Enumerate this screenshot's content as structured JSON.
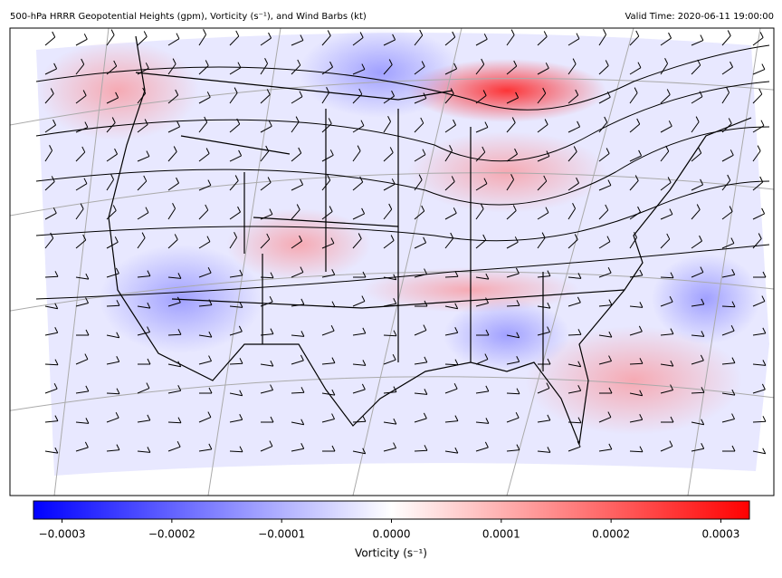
{
  "header": {
    "title": "500-hPa HRRR Geopotential Heights (gpm), Vorticity (s⁻¹), and Wind Barbs (kt)",
    "valid_time": "Valid Time: 2020-06-11 19:00:00"
  },
  "colorbar": {
    "label": "Vorticity (s⁻¹)",
    "lim": [
      -0.000326,
      0.000326
    ],
    "ticks": [
      {
        "value": -0.0003,
        "label": "−0.0003"
      },
      {
        "value": -0.0002,
        "label": "−0.0002"
      },
      {
        "value": -0.0001,
        "label": "−0.0001"
      },
      {
        "value": 0,
        "label": "0.0000"
      },
      {
        "value": 0.0001,
        "label": "0.0001"
      },
      {
        "value": 0.0002,
        "label": "0.0002"
      },
      {
        "value": 0.0003,
        "label": "0.0003"
      }
    ],
    "colors": [
      "#0000ff",
      "#ffffff",
      "#ff0000"
    ]
  }
}
